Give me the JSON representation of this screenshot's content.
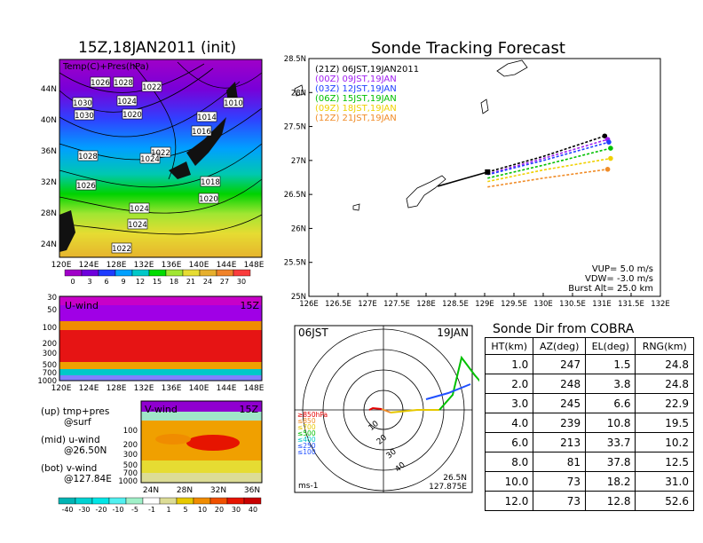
{
  "titles": {
    "left": "15Z,18JAN2011 (init)",
    "right": "Sonde Tracking Forecast"
  },
  "surface_map": {
    "label": "Temp(C)+Pres(hPa)",
    "lat_ticks": [
      "44N",
      "40N",
      "36N",
      "32N",
      "28N",
      "24N"
    ],
    "lon_ticks": [
      "120E",
      "124E",
      "128E",
      "132E",
      "136E",
      "140E",
      "144E",
      "148E"
    ],
    "isobar_labels": [
      "1026",
      "1028",
      "1022",
      "1030",
      "1024",
      "1020",
      "1030",
      "1010",
      "1014",
      "1016",
      "1028",
      "1022",
      "1024",
      "1018",
      "1026",
      "1020",
      "1024",
      "1024",
      "1022"
    ],
    "colorbar_ticks": [
      "0",
      "3",
      "6",
      "9",
      "12",
      "15",
      "18",
      "21",
      "24",
      "27",
      "30"
    ],
    "colors": [
      "#a000c8",
      "#6e00dc",
      "#1e3cff",
      "#00a0ff",
      "#00c8c8",
      "#00dc00",
      "#a0e632",
      "#e6dc32",
      "#e6af2d",
      "#f08228",
      "#fa3c3c"
    ]
  },
  "u_wind": {
    "label": "U-wind",
    "time": "15Z",
    "lev_ticks": [
      "30",
      "50",
      "100",
      "200",
      "300",
      "500",
      "700",
      "1000"
    ],
    "lon_ticks": [
      "120E",
      "124E",
      "128E",
      "132E",
      "136E",
      "140E",
      "144E",
      "148E"
    ]
  },
  "v_wind": {
    "label": "V-wind",
    "time": "15Z",
    "lev_ticks": [
      "100",
      "200",
      "300",
      "500",
      "700",
      "1000"
    ],
    "lat_ticks": [
      "24N",
      "28N",
      "32N",
      "36N"
    ],
    "colorbar_ticks": [
      "-40",
      "-30",
      "-20",
      "-10",
      "-5",
      "-1",
      "1",
      "5",
      "10",
      "20",
      "30",
      "40"
    ],
    "colors": [
      "#00b4b4",
      "#00d2d2",
      "#00e6e6",
      "#50f0f0",
      "#a0f0c8",
      "#ffffff",
      "#dcdc96",
      "#e6c800",
      "#f08c00",
      "#f05000",
      "#e61400",
      "#c80000"
    ]
  },
  "notes": [
    {
      "a": "(up) tmp+pres",
      "b": "@surf"
    },
    {
      "a": "(mid) u-wind",
      "b": "@26.50N"
    },
    {
      "a": "(bot) v-wind",
      "b": "@127.84E"
    }
  ],
  "chart_data": {
    "type": "line",
    "xlim": [
      126,
      132
    ],
    "ylim": [
      25,
      28.5
    ],
    "x_ticks": [
      "126E",
      "126.5E",
      "127E",
      "127.5E",
      "128E",
      "128.5E",
      "129E",
      "129.5E",
      "130E",
      "130.5E",
      "131E",
      "131.5E",
      "132E"
    ],
    "y_ticks": [
      "25N",
      "25.5N",
      "26N",
      "26.5N",
      "27N",
      "27.5N",
      "28N",
      "28.5N"
    ],
    "start": [
      129.05,
      26.83
    ],
    "series": [
      {
        "name": "(21Z)  06JST,19JAN2011",
        "color": "#000000",
        "points": [
          [
            129.05,
            26.83
          ],
          [
            130.0,
            27.06
          ],
          [
            131.05,
            27.36
          ]
        ]
      },
      {
        "name": "(00Z)  09JST,19JAN",
        "color": "#a020f0",
        "points": [
          [
            129.05,
            26.8
          ],
          [
            130.0,
            27.03
          ],
          [
            131.1,
            27.31
          ]
        ]
      },
      {
        "name": "(03Z)  12JST,19JAN",
        "color": "#2040ff",
        "points": [
          [
            129.05,
            26.79
          ],
          [
            130.0,
            27.0
          ],
          [
            131.12,
            27.27
          ]
        ]
      },
      {
        "name": "(06Z)  15JST,19JAN",
        "color": "#00c000",
        "points": [
          [
            129.05,
            26.74
          ],
          [
            130.0,
            26.93
          ],
          [
            131.15,
            27.18
          ]
        ]
      },
      {
        "name": "(09Z)  18JST,19JAN",
        "color": "#f0d000",
        "points": [
          [
            129.05,
            26.69
          ],
          [
            130.0,
            26.86
          ],
          [
            131.15,
            27.03
          ]
        ]
      },
      {
        "name": "(12Z)  21JST,19JAN",
        "color": "#f08c28",
        "points": [
          [
            129.05,
            26.61
          ],
          [
            130.0,
            26.74
          ],
          [
            131.1,
            26.87
          ]
        ]
      }
    ],
    "annotations": [
      "VUP= 5.0 m/s",
      "VDW= -3.0 m/s",
      "Burst Alt= 25.0 km"
    ]
  },
  "polar": {
    "left_label": "06JST",
    "right_label": "19JAN",
    "legend": [
      "≥850hPa",
      "≤850",
      "≤700",
      "≤500",
      "≤400",
      "≤250",
      "≤100"
    ],
    "legend_colors": [
      "#e60000",
      "#f08c28",
      "#e6c800",
      "#00c000",
      "#00c8c8",
      "#2050ff",
      "#2050ff"
    ],
    "ring_labels": [
      "10",
      "20",
      "30",
      "40"
    ],
    "units": "ms-1",
    "pos1": "26.5N",
    "pos2": "127.875E"
  },
  "table": {
    "title": "Sonde Dir from COBRA",
    "headers": [
      "HT(km)",
      "AZ(deg)",
      "EL(deg)",
      "RNG(km)"
    ],
    "rows": [
      [
        "1.0",
        "247",
        "1.5",
        "24.8"
      ],
      [
        "2.0",
        "248",
        "3.8",
        "24.8"
      ],
      [
        "3.0",
        "245",
        "6.6",
        "22.9"
      ],
      [
        "4.0",
        "239",
        "10.8",
        "19.5"
      ],
      [
        "6.0",
        "213",
        "33.7",
        "10.2"
      ],
      [
        "8.0",
        "81",
        "37.8",
        "12.5"
      ],
      [
        "10.0",
        "73",
        "18.2",
        "31.0"
      ],
      [
        "12.0",
        "73",
        "12.8",
        "52.6"
      ]
    ]
  }
}
